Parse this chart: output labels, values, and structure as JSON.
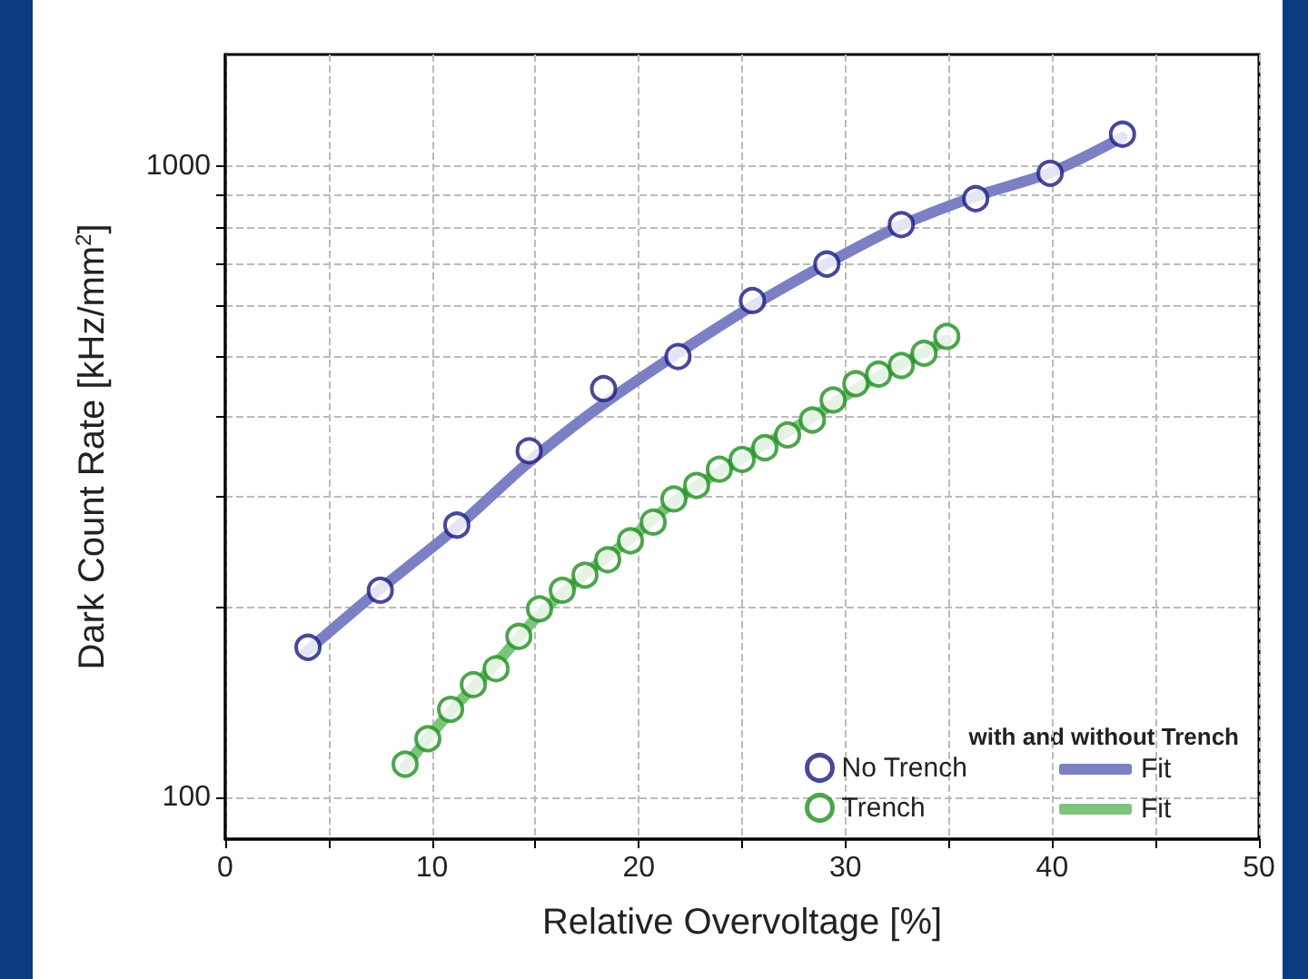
{
  "chart_data": {
    "type": "scatter",
    "xlabel": "Relative Overvoltage [%]",
    "ylabel": "Dark Count Rate [kHz/mm$^{2}$]",
    "legend_title": "with and without Trench",
    "legend": "bottom right",
    "grid": true,
    "log": "y",
    "xlim": [
      0,
      50
    ],
    "xticks": [
      0,
      {
        "value": 5,
        "label": null
      },
      10,
      {
        "value": 15,
        "label": null
      },
      20,
      {
        "value": 25,
        "label": null
      },
      30,
      {
        "value": 35,
        "label": null
      },
      40,
      {
        "value": 45,
        "label": null
      },
      50
    ],
    "ylim": [
      86,
      1500
    ],
    "yticks": [
      100,
      {
        "value": 200,
        "label": null
      },
      {
        "value": 300,
        "label": null
      },
      {
        "value": 400,
        "label": null
      },
      {
        "value": 500,
        "label": null
      },
      {
        "value": 600,
        "label": null
      },
      {
        "value": 700,
        "label": null
      },
      {
        "value": 800,
        "label": null
      },
      {
        "value": 900,
        "label": null
      },
      1000
    ],
    "series": [
      {
        "name": "No Trench",
        "marker": "circle",
        "color": "#1a1a80",
        "x": [
          4.0,
          7.5,
          11.2,
          14.7,
          18.3,
          21.9,
          25.5,
          29.1,
          32.7,
          36.3,
          39.9,
          43.4
        ],
        "values": [
          173,
          213,
          270,
          354,
          444,
          499,
          612,
          699,
          807,
          887,
          973,
          1122
        ]
      },
      {
        "name": "Trench",
        "marker": "circle",
        "color": "#1f8f1f",
        "x": [
          8.7,
          9.8,
          10.9,
          12.0,
          13.1,
          14.2,
          15.2,
          16.3,
          17.4,
          18.5,
          19.6,
          20.7,
          21.7,
          22.8,
          23.9,
          25.0,
          26.1,
          27.2,
          28.4,
          29.4,
          30.5,
          31.6,
          32.7,
          33.8,
          34.9
        ],
        "values": [
          113,
          124,
          138,
          151,
          160,
          180,
          199,
          213,
          225,
          238,
          255,
          273,
          297,
          312,
          331,
          343,
          358,
          375,
          396,
          426,
          452,
          468,
          483,
          505,
          537
        ]
      },
      {
        "name": "Fit",
        "type": "line",
        "marker": "none",
        "color": "#7b7fc4",
        "x": [
          3.9,
          7.5,
          11.2,
          14.7,
          18.3,
          21.9,
          25.5,
          29.1,
          32.7,
          36.3,
          39.9,
          43.4
        ],
        "values": [
          170,
          214,
          268,
          340,
          420,
          505,
          600,
          700,
          805,
          895,
          975,
          1110
        ]
      },
      {
        "name": "Fit",
        "type": "line",
        "marker": "none",
        "color": "#7cc47c",
        "x": [
          8.7,
          10.9,
          13.1,
          15.2,
          17.4,
          19.6,
          21.7,
          23.9,
          26.1,
          28.4,
          30.5,
          32.7,
          34.9
        ],
        "values": [
          112,
          137,
          163,
          195,
          226,
          257,
          294,
          328,
          362,
          400,
          443,
          485,
          530
        ]
      }
    ]
  }
}
